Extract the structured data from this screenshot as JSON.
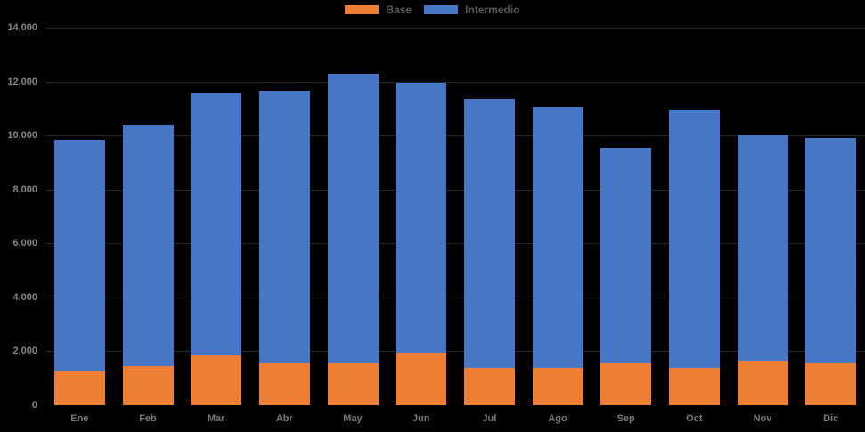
{
  "chart_data": {
    "type": "bar",
    "stacked": true,
    "title": "",
    "xlabel": "",
    "ylabel": "",
    "categories": [
      "Ene",
      "Feb",
      "Mar",
      "Abr",
      "May",
      "Jun",
      "Jul",
      "Ago",
      "Sep",
      "Oct",
      "Nov",
      "Dic"
    ],
    "series": [
      {
        "name": "Base",
        "color": "#EE7E33",
        "values": [
          1250,
          1450,
          1850,
          1550,
          1550,
          1950,
          1400,
          1400,
          1550,
          1400,
          1650,
          1600
        ]
      },
      {
        "name": "Intermedio",
        "color": "#4877C8",
        "values": [
          8600,
          8950,
          9750,
          10100,
          10750,
          10000,
          9950,
          9650,
          8000,
          9550,
          8350,
          8300
        ]
      }
    ],
    "stacked_totals": [
      9850,
      10400,
      11600,
      11650,
      12300,
      11950,
      11350,
      11050,
      9550,
      10950,
      10000,
      9900
    ],
    "ylim": [
      0,
      14000
    ],
    "y_tick_step": 2000,
    "y_tick_labels": [
      "0",
      "2,000",
      "4,000",
      "6,000",
      "8,000",
      "10,000",
      "12,000",
      "14,000"
    ],
    "grid": "horizontal-faint",
    "legend_position": "top-center"
  },
  "colors": {
    "background": "#000000",
    "gridline": "#262626",
    "y_tick_text": "#858585",
    "x_category_text": "#7a7a7a",
    "legend_text": "#595959"
  }
}
